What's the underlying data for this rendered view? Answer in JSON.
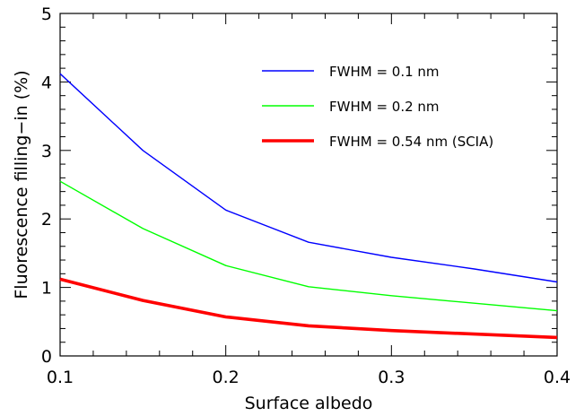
{
  "chart_data": {
    "type": "line",
    "xlabel": "Surface albedo",
    "ylabel": "Fluorescence filling−in  (%)",
    "xlim": [
      0.1,
      0.4
    ],
    "ylim": [
      0,
      5
    ],
    "x_ticks": [
      0.1,
      0.2,
      0.3,
      0.4
    ],
    "x_tick_labels": [
      "0.1",
      "0.2",
      "0.3",
      "0.4"
    ],
    "y_ticks": [
      0,
      1,
      2,
      3,
      4,
      5
    ],
    "y_tick_labels": [
      "0",
      "1",
      "2",
      "3",
      "4",
      "5"
    ],
    "grid": false,
    "legend_position": "top-right",
    "x": [
      0.1,
      0.15,
      0.2,
      0.25,
      0.3,
      0.35,
      0.4
    ],
    "series": [
      {
        "name": "FWHM = 0.1 nm",
        "color": "#0000ff",
        "line_width": "thin",
        "values": [
          4.12,
          3.0,
          2.13,
          1.66,
          1.44,
          1.27,
          1.08
        ]
      },
      {
        "name": "FWHM = 0.2 nm",
        "color": "#00ff00",
        "line_width": "thin",
        "values": [
          2.55,
          1.86,
          1.32,
          1.01,
          0.88,
          0.77,
          0.66
        ]
      },
      {
        "name": "FWHM = 0.54 nm (SCIA)",
        "color": "#ff0000",
        "line_width": "thick",
        "values": [
          1.12,
          0.81,
          0.57,
          0.44,
          0.37,
          0.32,
          0.27
        ]
      }
    ]
  }
}
